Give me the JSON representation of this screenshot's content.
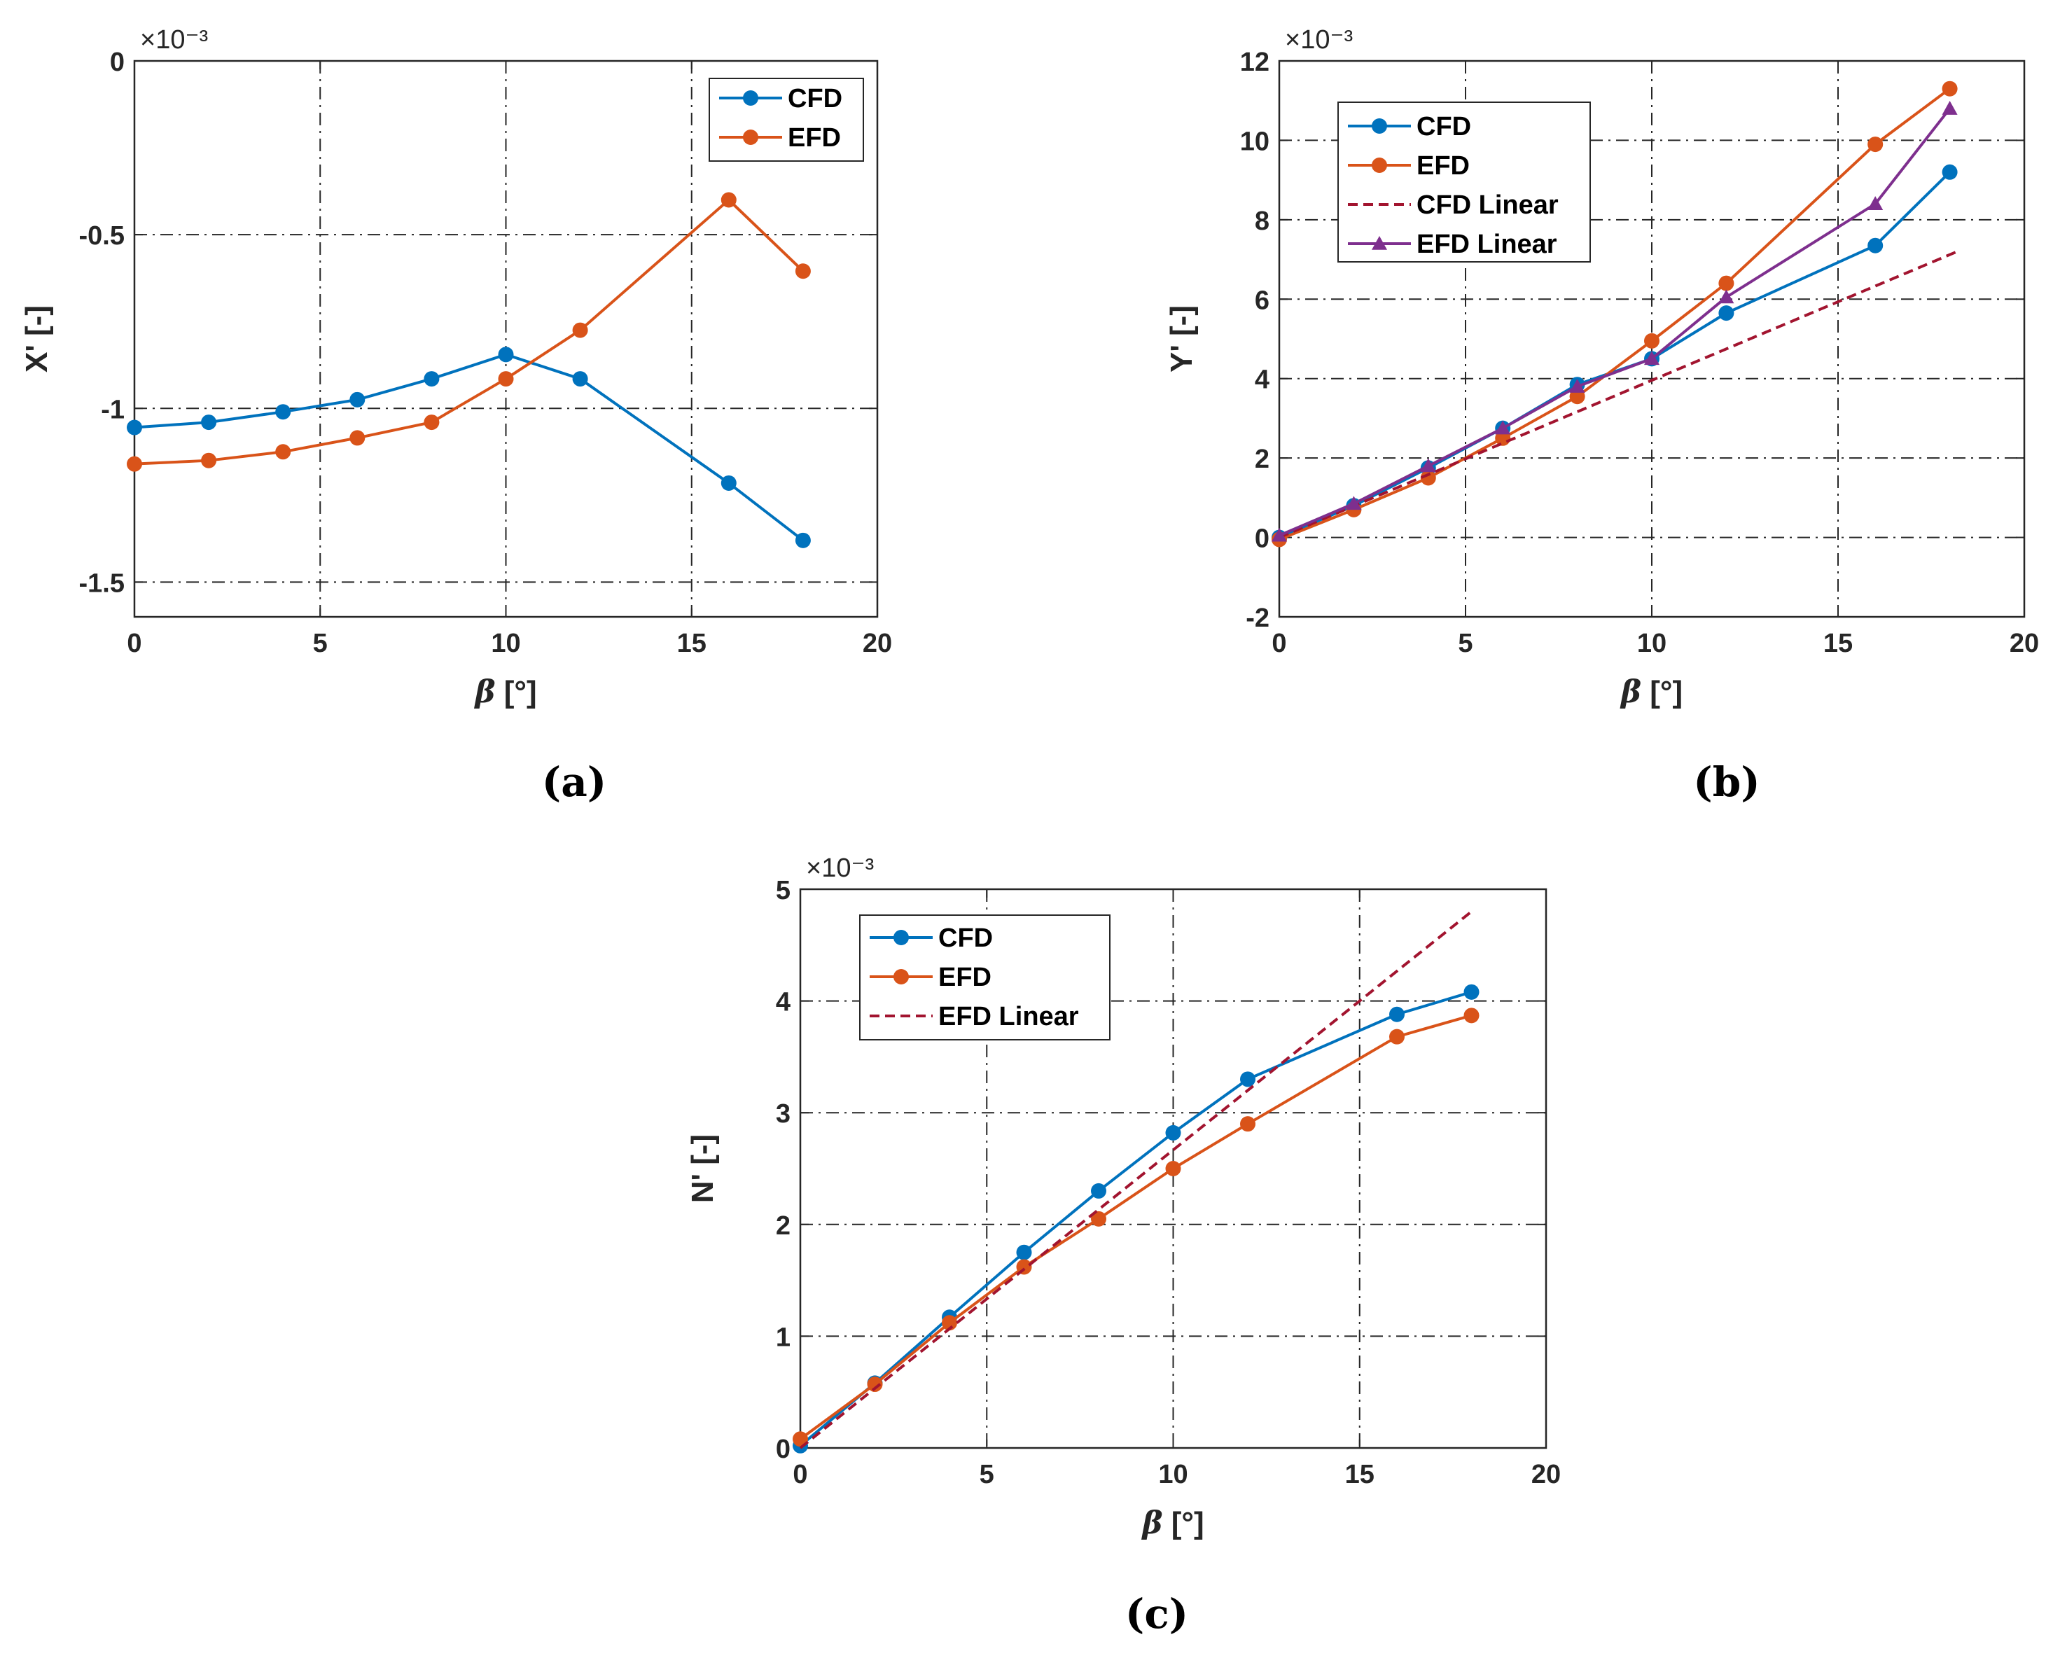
{
  "colors": {
    "cfd": "#0072BD",
    "efd": "#D95319",
    "linear_dashed": "#A2142F",
    "efd_linear": "#7E2F8E",
    "grid": "#262626",
    "axis": "#262626"
  },
  "chart_data": [
    {
      "id": "a",
      "type": "line",
      "caption": "(a)",
      "xlabel": "β [°]",
      "xlabel_symbol": "β",
      "xlabel_unit": "[°]",
      "ylabel": "X' [-]",
      "exponent_label": "×10⁻³",
      "xlim": [
        0,
        20
      ],
      "ylim": [
        -1.6,
        0
      ],
      "xticks": [
        0,
        5,
        10,
        15,
        20
      ],
      "yticks": [
        -1.5,
        -1,
        -0.5,
        0
      ],
      "xtick_labels": [
        "0",
        "5",
        "10",
        "15",
        "20"
      ],
      "ytick_labels": [
        "-1.5",
        "-1",
        "-0.5",
        "0"
      ],
      "grid": true,
      "legend_position": "top-right",
      "series": [
        {
          "name": "CFD",
          "style": "solid-marker-circle",
          "color_key": "cfd",
          "x": [
            0,
            2,
            4,
            6,
            8,
            10,
            12,
            16,
            18
          ],
          "y": [
            -1.055,
            -1.04,
            -1.01,
            -0.975,
            -0.915,
            -0.845,
            -0.915,
            -1.215,
            -1.38
          ]
        },
        {
          "name": "EFD",
          "style": "solid-marker-circle",
          "color_key": "efd",
          "x": [
            0,
            2,
            4,
            6,
            8,
            10,
            12,
            16,
            18
          ],
          "y": [
            -1.16,
            -1.15,
            -1.125,
            -1.085,
            -1.04,
            -0.915,
            -0.775,
            -0.4,
            -0.605
          ]
        }
      ]
    },
    {
      "id": "b",
      "type": "line",
      "caption": "(b)",
      "xlabel": "β [°]",
      "xlabel_symbol": "β",
      "xlabel_unit": "[°]",
      "ylabel": "Y' [-]",
      "exponent_label": "×10⁻³",
      "xlim": [
        0,
        20
      ],
      "ylim": [
        -2,
        12
      ],
      "xticks": [
        0,
        5,
        10,
        15,
        20
      ],
      "yticks": [
        -2,
        0,
        2,
        4,
        6,
        8,
        10,
        12
      ],
      "xtick_labels": [
        "0",
        "5",
        "10",
        "15",
        "20"
      ],
      "ytick_labels": [
        "-2",
        "0",
        "2",
        "4",
        "6",
        "8",
        "10",
        "12"
      ],
      "grid": true,
      "legend_position": "top-left",
      "series": [
        {
          "name": "CFD",
          "style": "solid-marker-circle",
          "color_key": "cfd",
          "x": [
            0,
            2,
            4,
            6,
            8,
            10,
            12,
            16,
            18
          ],
          "y": [
            0.0,
            0.8,
            1.75,
            2.75,
            3.85,
            4.5,
            5.65,
            7.35,
            9.2
          ]
        },
        {
          "name": "EFD",
          "style": "solid-marker-circle",
          "color_key": "efd",
          "x": [
            0,
            2,
            4,
            6,
            8,
            10,
            12,
            16,
            18
          ],
          "y": [
            -0.05,
            0.7,
            1.5,
            2.5,
            3.55,
            4.95,
            6.4,
            9.9,
            11.3
          ]
        },
        {
          "name": "CFD Linear",
          "style": "dashed",
          "color_key": "linear_dashed",
          "x": [
            0,
            18.2
          ],
          "y": [
            0.0,
            7.2
          ]
        },
        {
          "name": "EFD Linear",
          "style": "solid-marker-triangle",
          "color_key": "efd_linear",
          "x": [
            0,
            2,
            4,
            6,
            8,
            10,
            12,
            16,
            18
          ],
          "y": [
            0.05,
            0.85,
            1.8,
            2.75,
            3.8,
            4.5,
            6.05,
            8.4,
            10.8
          ]
        }
      ]
    },
    {
      "id": "c",
      "type": "line",
      "caption": "(c)",
      "xlabel": "β [°]",
      "xlabel_symbol": "β",
      "xlabel_unit": "[°]",
      "ylabel": "N' [-]",
      "exponent_label": "×10⁻³",
      "xlim": [
        0,
        20
      ],
      "ylim": [
        0,
        5
      ],
      "xticks": [
        0,
        5,
        10,
        15,
        20
      ],
      "yticks": [
        0,
        1,
        2,
        3,
        4,
        5
      ],
      "xtick_labels": [
        "0",
        "5",
        "10",
        "15",
        "20"
      ],
      "ytick_labels": [
        "0",
        "1",
        "2",
        "3",
        "4",
        "5"
      ],
      "grid": true,
      "legend_position": "top-left",
      "series": [
        {
          "name": "CFD",
          "style": "solid-marker-circle",
          "color_key": "cfd",
          "x": [
            0,
            2,
            4,
            6,
            8,
            10,
            12,
            16,
            18
          ],
          "y": [
            0.02,
            0.58,
            1.17,
            1.75,
            2.3,
            2.82,
            3.3,
            3.88,
            4.08
          ]
        },
        {
          "name": "EFD",
          "style": "solid-marker-circle",
          "color_key": "efd",
          "x": [
            0,
            2,
            4,
            6,
            8,
            10,
            12,
            16,
            18
          ],
          "y": [
            0.08,
            0.57,
            1.12,
            1.62,
            2.05,
            2.5,
            2.9,
            3.68,
            3.87
          ]
        },
        {
          "name": "EFD Linear",
          "style": "dashed",
          "color_key": "linear_dashed",
          "x": [
            0,
            18
          ],
          "y": [
            0.0,
            4.8
          ]
        }
      ]
    }
  ]
}
